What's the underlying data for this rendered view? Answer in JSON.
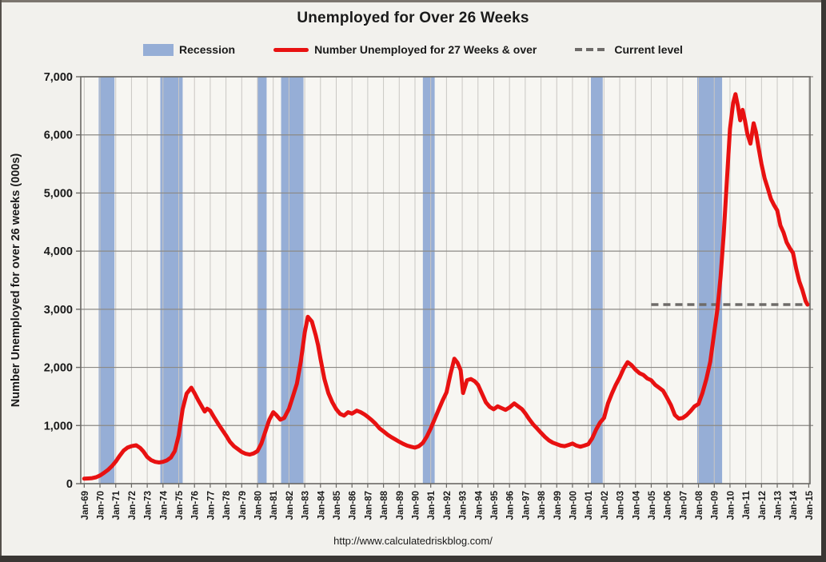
{
  "title": "Unemployed for Over 26 Weeks",
  "footer_url": "http://www.calculatedriskblog.com/",
  "legend": [
    {
      "label": "Recession",
      "type": "box",
      "color": "#96aed6"
    },
    {
      "label": "Number Unemployed for 27 Weeks & over",
      "type": "line",
      "color": "#e81111"
    },
    {
      "label": "Current level",
      "type": "dash",
      "color": "#6e6b69"
    }
  ],
  "colors": {
    "line_red": "#e81111",
    "recession_blue": "#96aed6",
    "current_level_gray": "#6e6b69",
    "grid_vertical": "#c9c7c3",
    "grid_horizontal": "#8b8985",
    "frame": "#6a6864",
    "plot_background": "#f7f6f2",
    "page_background": "#f2f1ed",
    "text": "#1a1a1a"
  },
  "chart_data": {
    "type": "line",
    "title": "Unemployed for Over 26 Weeks",
    "xlabel": "",
    "ylabel": "Number Unemployed for over 26 weeks (000s)",
    "ylim": [
      0,
      7000
    ],
    "xlim": [
      1968.78,
      2015.08
    ],
    "grid": "both",
    "legend_position": "top",
    "y_ticks": [
      0,
      1000,
      2000,
      3000,
      4000,
      5000,
      6000,
      7000
    ],
    "y_tick_labels": [
      "0",
      "1,000",
      "2,000",
      "3,000",
      "4,000",
      "5,000",
      "6,000",
      "7,000"
    ],
    "x_tick_years": [
      1969,
      1970,
      1971,
      1972,
      1973,
      1974,
      1975,
      1976,
      1977,
      1978,
      1979,
      1980,
      1981,
      1982,
      1983,
      1984,
      1985,
      1986,
      1987,
      1988,
      1989,
      1990,
      1991,
      1992,
      1993,
      1994,
      1995,
      1996,
      1997,
      1998,
      1999,
      2000,
      2001,
      2002,
      2003,
      2004,
      2005,
      2006,
      2007,
      2008,
      2009,
      2010,
      2011,
      2012,
      2013,
      2014,
      2015
    ],
    "x_tick_labels": [
      "Jan-69",
      "Jan-70",
      "Jan-71",
      "Jan-72",
      "Jan-73",
      "Jan-74",
      "Jan-75",
      "Jan-76",
      "Jan-77",
      "Jan-78",
      "Jan-79",
      "Jan-80",
      "Jan-81",
      "Jan-82",
      "Jan-83",
      "Jan-84",
      "Jan-85",
      "Jan-86",
      "Jan-87",
      "Jan-88",
      "Jan-89",
      "Jan-90",
      "Jan-91",
      "Jan-92",
      "Jan-93",
      "Jan-94",
      "Jan-95",
      "Jan-96",
      "Jan-97",
      "Jan-98",
      "Jan-99",
      "Jan-00",
      "Jan-01",
      "Jan-02",
      "Jan-03",
      "Jan-04",
      "Jan-05",
      "Jan-06",
      "Jan-07",
      "Jan-08",
      "Jan-09",
      "Jan-10",
      "Jan-11",
      "Jan-12",
      "Jan-13",
      "Jan-14",
      "Jan-15"
    ],
    "recessions": [
      [
        1969.92,
        1970.92
      ],
      [
        1973.83,
        1975.25
      ],
      [
        1980.0,
        1980.58
      ],
      [
        1981.5,
        1982.92
      ],
      [
        1990.5,
        1991.25
      ],
      [
        2001.17,
        2001.92
      ],
      [
        2007.92,
        2009.5
      ]
    ],
    "current_level": {
      "value": 3080,
      "span": [
        2005.0,
        2015.08
      ]
    },
    "series": [
      {
        "name": "Number Unemployed for 27 Weeks & over",
        "color": "#e81111",
        "points": [
          [
            1969.0,
            85
          ],
          [
            1969.25,
            90
          ],
          [
            1969.5,
            95
          ],
          [
            1969.75,
            110
          ],
          [
            1970.0,
            140
          ],
          [
            1970.25,
            185
          ],
          [
            1970.5,
            235
          ],
          [
            1970.75,
            300
          ],
          [
            1971.0,
            380
          ],
          [
            1971.25,
            480
          ],
          [
            1971.5,
            570
          ],
          [
            1971.75,
            620
          ],
          [
            1972.0,
            645
          ],
          [
            1972.3,
            660
          ],
          [
            1972.55,
            615
          ],
          [
            1972.75,
            555
          ],
          [
            1973.0,
            460
          ],
          [
            1973.25,
            405
          ],
          [
            1973.5,
            375
          ],
          [
            1973.75,
            365
          ],
          [
            1974.0,
            375
          ],
          [
            1974.25,
            400
          ],
          [
            1974.5,
            450
          ],
          [
            1974.75,
            560
          ],
          [
            1975.0,
            830
          ],
          [
            1975.25,
            1280
          ],
          [
            1975.5,
            1550
          ],
          [
            1975.8,
            1650
          ],
          [
            1976.0,
            1560
          ],
          [
            1976.25,
            1430
          ],
          [
            1976.5,
            1310
          ],
          [
            1976.65,
            1240
          ],
          [
            1976.8,
            1290
          ],
          [
            1977.0,
            1255
          ],
          [
            1977.25,
            1140
          ],
          [
            1977.5,
            1030
          ],
          [
            1977.75,
            930
          ],
          [
            1978.0,
            830
          ],
          [
            1978.25,
            720
          ],
          [
            1978.5,
            645
          ],
          [
            1978.75,
            595
          ],
          [
            1979.0,
            545
          ],
          [
            1979.25,
            515
          ],
          [
            1979.5,
            500
          ],
          [
            1979.75,
            520
          ],
          [
            1980.0,
            560
          ],
          [
            1980.25,
            690
          ],
          [
            1980.5,
            900
          ],
          [
            1980.75,
            1100
          ],
          [
            1981.0,
            1230
          ],
          [
            1981.2,
            1180
          ],
          [
            1981.45,
            1100
          ],
          [
            1981.7,
            1130
          ],
          [
            1982.0,
            1290
          ],
          [
            1982.25,
            1500
          ],
          [
            1982.5,
            1720
          ],
          [
            1982.75,
            2100
          ],
          [
            1983.0,
            2600
          ],
          [
            1983.2,
            2870
          ],
          [
            1983.45,
            2790
          ],
          [
            1983.7,
            2550
          ],
          [
            1983.85,
            2380
          ],
          [
            1984.0,
            2150
          ],
          [
            1984.25,
            1800
          ],
          [
            1984.5,
            1560
          ],
          [
            1984.75,
            1400
          ],
          [
            1985.0,
            1280
          ],
          [
            1985.25,
            1200
          ],
          [
            1985.5,
            1170
          ],
          [
            1985.75,
            1230
          ],
          [
            1986.0,
            1205
          ],
          [
            1986.3,
            1255
          ],
          [
            1986.55,
            1230
          ],
          [
            1986.8,
            1190
          ],
          [
            1987.0,
            1150
          ],
          [
            1987.25,
            1095
          ],
          [
            1987.5,
            1030
          ],
          [
            1987.75,
            950
          ],
          [
            1988.0,
            900
          ],
          [
            1988.25,
            845
          ],
          [
            1988.5,
            800
          ],
          [
            1988.75,
            760
          ],
          [
            1989.0,
            720
          ],
          [
            1989.25,
            685
          ],
          [
            1989.5,
            655
          ],
          [
            1989.75,
            635
          ],
          [
            1990.0,
            620
          ],
          [
            1990.25,
            645
          ],
          [
            1990.5,
            700
          ],
          [
            1990.75,
            810
          ],
          [
            1991.0,
            950
          ],
          [
            1991.25,
            1110
          ],
          [
            1991.5,
            1270
          ],
          [
            1991.75,
            1430
          ],
          [
            1992.0,
            1570
          ],
          [
            1992.25,
            1880
          ],
          [
            1992.5,
            2150
          ],
          [
            1992.7,
            2080
          ],
          [
            1992.9,
            1950
          ],
          [
            1993.05,
            1560
          ],
          [
            1993.3,
            1780
          ],
          [
            1993.55,
            1800
          ],
          [
            1993.8,
            1760
          ],
          [
            1994.0,
            1700
          ],
          [
            1994.25,
            1550
          ],
          [
            1994.5,
            1400
          ],
          [
            1994.75,
            1320
          ],
          [
            1995.0,
            1280
          ],
          [
            1995.25,
            1330
          ],
          [
            1995.5,
            1300
          ],
          [
            1995.75,
            1270
          ],
          [
            1996.0,
            1310
          ],
          [
            1996.3,
            1380
          ],
          [
            1996.55,
            1330
          ],
          [
            1996.8,
            1280
          ],
          [
            1997.0,
            1210
          ],
          [
            1997.25,
            1110
          ],
          [
            1997.5,
            1020
          ],
          [
            1997.75,
            950
          ],
          [
            1998.0,
            875
          ],
          [
            1998.25,
            805
          ],
          [
            1998.5,
            745
          ],
          [
            1998.75,
            705
          ],
          [
            1999.0,
            680
          ],
          [
            1999.25,
            655
          ],
          [
            1999.5,
            645
          ],
          [
            1999.75,
            665
          ],
          [
            2000.0,
            690
          ],
          [
            2000.25,
            655
          ],
          [
            2000.5,
            635
          ],
          [
            2000.75,
            655
          ],
          [
            2001.0,
            680
          ],
          [
            2001.25,
            780
          ],
          [
            2001.5,
            930
          ],
          [
            2001.75,
            1050
          ],
          [
            2002.0,
            1130
          ],
          [
            2002.25,
            1380
          ],
          [
            2002.5,
            1550
          ],
          [
            2002.75,
            1700
          ],
          [
            2003.0,
            1830
          ],
          [
            2003.25,
            1980
          ],
          [
            2003.5,
            2090
          ],
          [
            2003.75,
            2040
          ],
          [
            2004.0,
            1960
          ],
          [
            2004.25,
            1900
          ],
          [
            2004.5,
            1870
          ],
          [
            2004.75,
            1810
          ],
          [
            2005.0,
            1780
          ],
          [
            2005.25,
            1700
          ],
          [
            2005.5,
            1650
          ],
          [
            2005.75,
            1600
          ],
          [
            2006.0,
            1480
          ],
          [
            2006.25,
            1350
          ],
          [
            2006.5,
            1180
          ],
          [
            2006.75,
            1120
          ],
          [
            2007.0,
            1130
          ],
          [
            2007.25,
            1180
          ],
          [
            2007.5,
            1250
          ],
          [
            2007.75,
            1330
          ],
          [
            2008.0,
            1370
          ],
          [
            2008.25,
            1560
          ],
          [
            2008.5,
            1800
          ],
          [
            2008.75,
            2100
          ],
          [
            2009.0,
            2600
          ],
          [
            2009.2,
            3000
          ],
          [
            2009.4,
            3550
          ],
          [
            2009.6,
            4300
          ],
          [
            2009.8,
            5200
          ],
          [
            2010.0,
            6100
          ],
          [
            2010.2,
            6550
          ],
          [
            2010.35,
            6700
          ],
          [
            2010.5,
            6500
          ],
          [
            2010.65,
            6250
          ],
          [
            2010.8,
            6430
          ],
          [
            2010.95,
            6250
          ],
          [
            2011.1,
            6020
          ],
          [
            2011.3,
            5850
          ],
          [
            2011.5,
            6200
          ],
          [
            2011.65,
            6050
          ],
          [
            2011.8,
            5800
          ],
          [
            2012.0,
            5500
          ],
          [
            2012.2,
            5250
          ],
          [
            2012.4,
            5080
          ],
          [
            2012.6,
            4900
          ],
          [
            2012.8,
            4790
          ],
          [
            2013.0,
            4700
          ],
          [
            2013.2,
            4440
          ],
          [
            2013.4,
            4320
          ],
          [
            2013.6,
            4150
          ],
          [
            2013.8,
            4050
          ],
          [
            2014.0,
            3970
          ],
          [
            2014.2,
            3700
          ],
          [
            2014.4,
            3480
          ],
          [
            2014.6,
            3330
          ],
          [
            2014.8,
            3140
          ],
          [
            2014.92,
            3080
          ]
        ]
      }
    ]
  }
}
